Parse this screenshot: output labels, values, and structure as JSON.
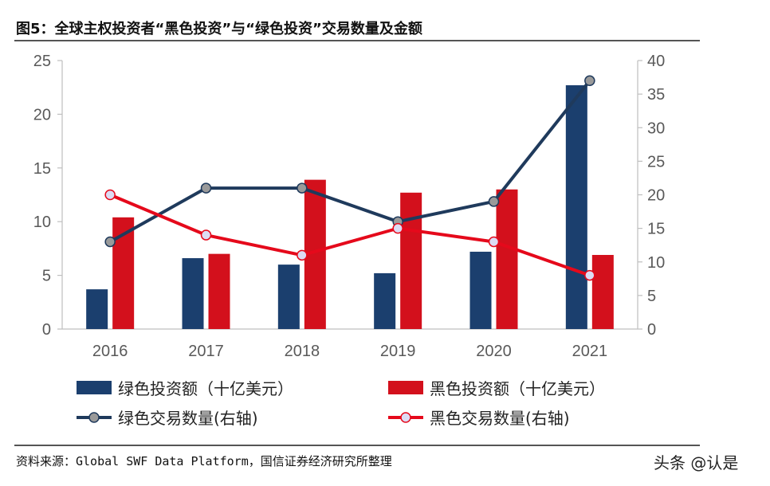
{
  "title": "图5：全球主权投资者“黑色投资”与“绿色投资”交易数量及金额",
  "source": "资料来源：Global SWF Data Platform，国信证券经济研究所整理",
  "watermark": "头条 @认是",
  "chart_data": {
    "type": "bar",
    "categories": [
      "2016",
      "2017",
      "2018",
      "2019",
      "2020",
      "2021"
    ],
    "y_left": {
      "ylim": [
        0,
        25
      ],
      "ticks": [
        "0",
        "5",
        "10",
        "15",
        "20",
        "25"
      ]
    },
    "y_right": {
      "ylim": [
        0,
        40
      ],
      "ticks": [
        "0",
        "5",
        "10",
        "15",
        "20",
        "25",
        "30",
        "35",
        "40"
      ]
    },
    "legend_position": "bottom",
    "series": [
      {
        "name": "绿色投资额（十亿美元）",
        "kind": "bar",
        "axis": "left",
        "color": "#1b3f6e",
        "values": [
          3.7,
          6.6,
          6.0,
          5.2,
          7.2,
          22.7
        ]
      },
      {
        "name": "黑色投资额（十亿美元）",
        "kind": "bar",
        "axis": "left",
        "color": "#d3101c",
        "values": [
          10.4,
          7.0,
          13.9,
          12.7,
          13.0,
          6.9
        ]
      },
      {
        "name": "绿色交易数量(右轴)",
        "kind": "line",
        "axis": "right",
        "color": "#1f3a5c",
        "marker_fill": "#9a9a9a",
        "values": [
          13,
          21,
          21,
          16,
          19,
          37
        ]
      },
      {
        "name": "黑色交易数量(右轴)",
        "kind": "line",
        "axis": "right",
        "color": "#e5091b",
        "marker_fill": "#dcdcf4",
        "values": [
          20,
          14,
          11,
          15,
          13,
          8
        ]
      }
    ]
  }
}
